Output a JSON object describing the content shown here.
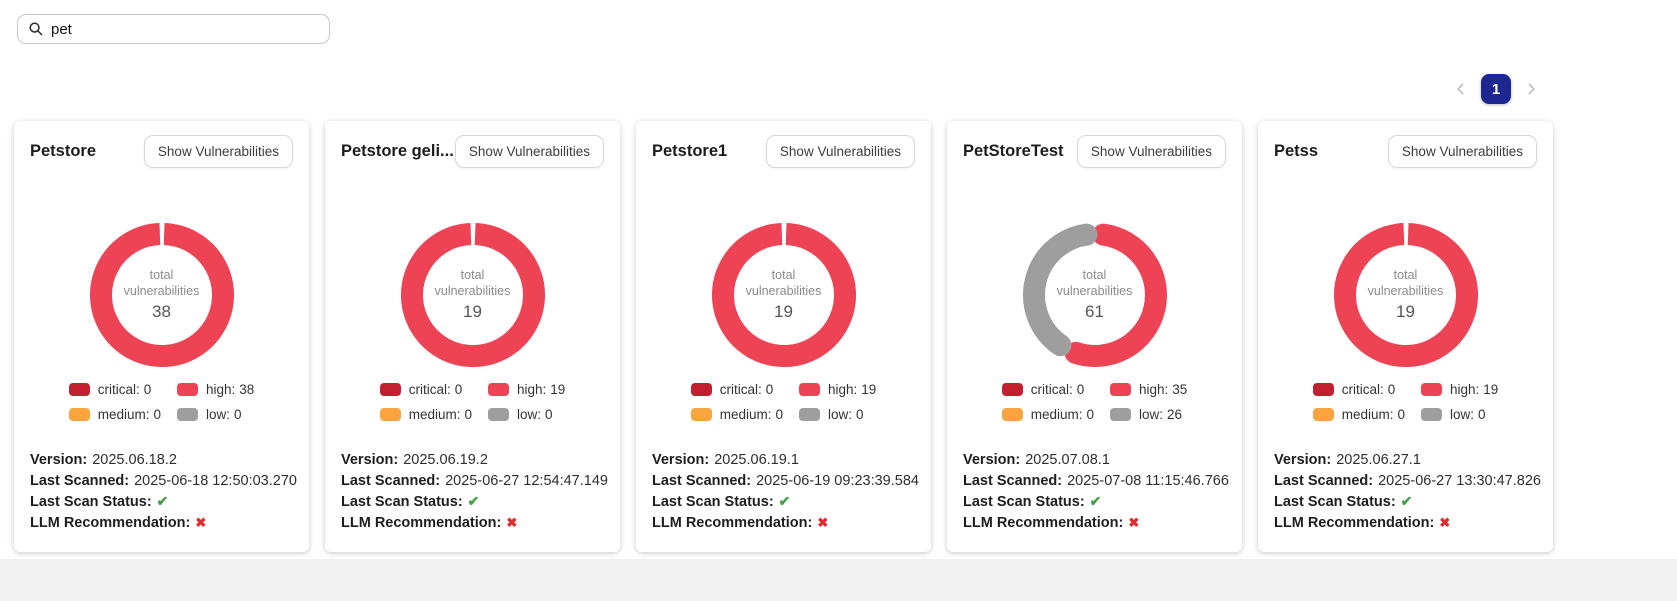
{
  "search": {
    "value": "pet"
  },
  "pagination": {
    "current_page": "1"
  },
  "ui": {
    "show_vulnerabilities": "Show Vulnerabilities",
    "center_top": "total",
    "center_bottom": "vulnerabilities",
    "version_label": "Version:",
    "last_scanned_label": "Last Scanned:",
    "last_scan_status_label": "Last Scan Status:",
    "llm_recommendation_label": "LLM Recommendation:",
    "critical_label": "critical:",
    "high_label": "high:",
    "medium_label": "medium:",
    "low_label": "low:"
  },
  "icons": {
    "check": "✔",
    "cross": "✖"
  },
  "colors": {
    "critical": "#c2202f",
    "high": "#ee4255",
    "medium": "#f9a43f",
    "low": "#9e9e9e",
    "check_green": "#43a047",
    "cross_red": "#e22b2e",
    "page_button": "#1c2790"
  },
  "cards": [
    {
      "title": "Petstore",
      "total": 38,
      "critical": 0,
      "high": 38,
      "medium": 0,
      "low": 0,
      "version": "2025.06.18.2",
      "last_scanned": "2025-06-18 12:50:03.270",
      "scan_status_icon": "check",
      "llm_recommendation_icon": "cross"
    },
    {
      "title": "Petstore geli...",
      "total": 19,
      "critical": 0,
      "high": 19,
      "medium": 0,
      "low": 0,
      "version": "2025.06.19.2",
      "last_scanned": "2025-06-27 12:54:47.149",
      "scan_status_icon": "check",
      "llm_recommendation_icon": "cross"
    },
    {
      "title": "Petstore1",
      "total": 19,
      "critical": 0,
      "high": 19,
      "medium": 0,
      "low": 0,
      "version": "2025.06.19.1",
      "last_scanned": "2025-06-19 09:23:39.584",
      "scan_status_icon": "check",
      "llm_recommendation_icon": "cross"
    },
    {
      "title": "PetStoreTest",
      "total": 61,
      "critical": 0,
      "high": 35,
      "medium": 0,
      "low": 26,
      "version": "2025.07.08.1",
      "last_scanned": "2025-07-08 11:15:46.766",
      "scan_status_icon": "check",
      "llm_recommendation_icon": "cross"
    },
    {
      "title": "Petss",
      "total": 19,
      "critical": 0,
      "high": 19,
      "medium": 0,
      "low": 0,
      "version": "2025.06.27.1",
      "last_scanned": "2025-06-27 13:30:47.826",
      "scan_status_icon": "check",
      "llm_recommendation_icon": "cross"
    }
  ],
  "chart_data": [
    {
      "type": "pie",
      "card": "Petstore",
      "title": "total vulnerabilities",
      "labels": [
        "critical",
        "high",
        "medium",
        "low"
      ],
      "values": [
        0,
        38,
        0,
        0
      ],
      "total": 38,
      "colors": [
        "#c2202f",
        "#ee4255",
        "#f9a43f",
        "#9e9e9e"
      ],
      "legend_position": "bottom"
    },
    {
      "type": "pie",
      "card": "Petstore geli...",
      "title": "total vulnerabilities",
      "labels": [
        "critical",
        "high",
        "medium",
        "low"
      ],
      "values": [
        0,
        19,
        0,
        0
      ],
      "total": 19,
      "colors": [
        "#c2202f",
        "#ee4255",
        "#f9a43f",
        "#9e9e9e"
      ],
      "legend_position": "bottom"
    },
    {
      "type": "pie",
      "card": "Petstore1",
      "title": "total vulnerabilities",
      "labels": [
        "critical",
        "high",
        "medium",
        "low"
      ],
      "values": [
        0,
        19,
        0,
        0
      ],
      "total": 19,
      "colors": [
        "#c2202f",
        "#ee4255",
        "#f9a43f",
        "#9e9e9e"
      ],
      "legend_position": "bottom"
    },
    {
      "type": "pie",
      "card": "PetStoreTest",
      "title": "total vulnerabilities",
      "labels": [
        "critical",
        "high",
        "medium",
        "low"
      ],
      "values": [
        0,
        35,
        0,
        26
      ],
      "total": 61,
      "colors": [
        "#c2202f",
        "#ee4255",
        "#f9a43f",
        "#9e9e9e"
      ],
      "legend_position": "bottom"
    },
    {
      "type": "pie",
      "card": "Petss",
      "title": "total vulnerabilities",
      "labels": [
        "critical",
        "high",
        "medium",
        "low"
      ],
      "values": [
        0,
        19,
        0,
        0
      ],
      "total": 19,
      "colors": [
        "#c2202f",
        "#ee4255",
        "#f9a43f",
        "#9e9e9e"
      ],
      "legend_position": "bottom"
    }
  ]
}
